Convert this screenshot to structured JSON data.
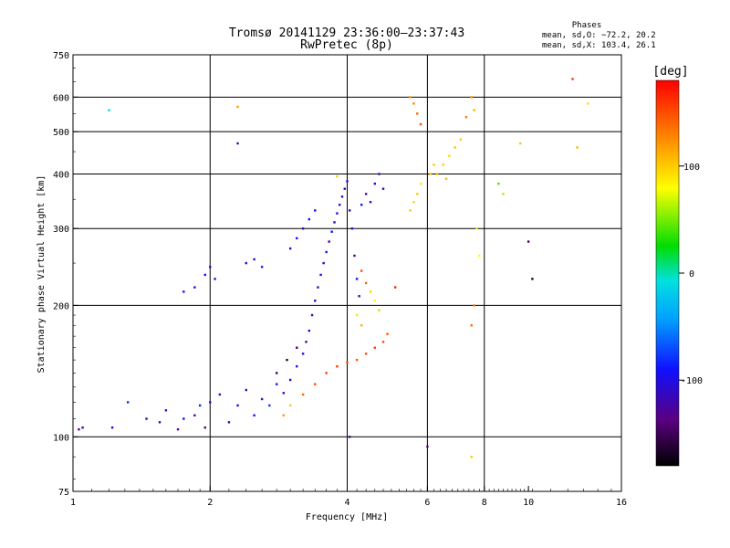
{
  "chart_data": {
    "type": "scatter",
    "title": "Tromsø 20141129 23:36:00–23:37:43",
    "subtitle": "RwPretec (8p)",
    "xlabel": "Frequency [MHz]",
    "ylabel": "Stationary phase Virtual Height [km]",
    "x_scale": "log",
    "y_scale": "log",
    "xlim": [
      1,
      16
    ],
    "ylim": [
      75,
      750
    ],
    "x_ticks": [
      1,
      2,
      4,
      6,
      8,
      10,
      16
    ],
    "y_ticks": [
      75,
      100,
      200,
      300,
      400,
      500,
      600,
      750
    ],
    "x_grid": [
      2,
      4,
      6,
      8
    ],
    "y_grid": [
      100,
      200,
      300,
      400,
      500,
      600
    ],
    "grid": true,
    "stats": {
      "heading": "Phases",
      "line_o": "mean, sd,O: −72.2, 20.2",
      "line_x": "mean, sd,X: 103.4, 26.1"
    },
    "colorbar": {
      "label": "[deg]",
      "min": -180,
      "max": 180,
      "ticks": [
        100,
        0,
        -100
      ]
    },
    "series": [
      {
        "name": "O",
        "points": [
          [
            1.03,
            104,
            -130
          ],
          [
            1.05,
            105,
            -110
          ],
          [
            1.22,
            105,
            -90
          ],
          [
            1.32,
            120,
            -80
          ],
          [
            1.45,
            110,
            -120
          ],
          [
            1.55,
            108,
            -100
          ],
          [
            1.6,
            115,
            -110
          ],
          [
            1.7,
            104,
            -125
          ],
          [
            1.75,
            110,
            -95
          ],
          [
            1.85,
            112,
            -130
          ],
          [
            1.9,
            118,
            -85
          ],
          [
            1.95,
            105,
            -140
          ],
          [
            2.0,
            120,
            -100
          ],
          [
            2.1,
            125,
            -115
          ],
          [
            2.2,
            108,
            -105
          ],
          [
            2.3,
            118,
            -95
          ],
          [
            2.4,
            128,
            -120
          ],
          [
            2.5,
            112,
            -90
          ],
          [
            2.6,
            122,
            -110
          ],
          [
            2.7,
            118,
            -80
          ],
          [
            2.8,
            132,
            -100
          ],
          [
            2.9,
            126,
            -125
          ],
          [
            3.0,
            135,
            -95
          ],
          [
            3.1,
            145,
            -110
          ],
          [
            3.2,
            155,
            -100
          ],
          [
            3.25,
            165,
            -130
          ],
          [
            3.3,
            175,
            -105
          ],
          [
            3.35,
            190,
            -115
          ],
          [
            3.4,
            205,
            -100
          ],
          [
            3.45,
            220,
            -120
          ],
          [
            3.5,
            235,
            -95
          ],
          [
            3.55,
            250,
            -110
          ],
          [
            3.6,
            265,
            -100
          ],
          [
            3.65,
            280,
            -125
          ],
          [
            3.7,
            295,
            -90
          ],
          [
            3.75,
            310,
            -115
          ],
          [
            3.8,
            325,
            -100
          ],
          [
            3.85,
            340,
            -110
          ],
          [
            3.9,
            355,
            -95
          ],
          [
            3.95,
            370,
            -120
          ],
          [
            4.0,
            385,
            -100
          ],
          [
            4.05,
            330,
            -115
          ],
          [
            4.1,
            300,
            -105
          ],
          [
            4.15,
            260,
            -130
          ],
          [
            4.2,
            230,
            -100
          ],
          [
            4.25,
            210,
            -110
          ],
          [
            4.3,
            340,
            -90
          ],
          [
            4.4,
            360,
            -120
          ],
          [
            4.5,
            345,
            -105
          ],
          [
            4.6,
            380,
            -100
          ],
          [
            4.7,
            400,
            -125
          ],
          [
            4.8,
            370,
            -110
          ],
          [
            1.75,
            215,
            -90
          ],
          [
            1.85,
            220,
            -105
          ],
          [
            1.95,
            235,
            -100
          ],
          [
            2.0,
            245,
            -115
          ],
          [
            2.05,
            230,
            -95
          ],
          [
            2.4,
            250,
            -100
          ],
          [
            2.5,
            255,
            -110
          ],
          [
            2.6,
            245,
            -85
          ],
          [
            3.0,
            270,
            -100
          ],
          [
            3.1,
            285,
            -95
          ],
          [
            3.2,
            300,
            -110
          ],
          [
            3.3,
            315,
            -100
          ],
          [
            3.4,
            330,
            -90
          ],
          [
            2.8,
            140,
            -150
          ],
          [
            2.95,
            150,
            -160
          ],
          [
            3.1,
            160,
            -145
          ]
        ]
      },
      {
        "name": "X",
        "points": [
          [
            2.9,
            112,
            120
          ],
          [
            3.0,
            118,
            100
          ],
          [
            3.2,
            125,
            140
          ],
          [
            3.4,
            132,
            150
          ],
          [
            3.6,
            140,
            155
          ],
          [
            3.8,
            145,
            160
          ],
          [
            4.0,
            148,
            150
          ],
          [
            4.2,
            150,
            145
          ],
          [
            4.4,
            155,
            150
          ],
          [
            4.6,
            160,
            155
          ],
          [
            4.8,
            165,
            150
          ],
          [
            4.9,
            172,
            145
          ],
          [
            4.3,
            240,
            150
          ],
          [
            4.4,
            225,
            140
          ],
          [
            4.5,
            215,
            100
          ],
          [
            4.6,
            205,
            80
          ],
          [
            4.7,
            195,
            60
          ],
          [
            4.2,
            190,
            70
          ],
          [
            4.3,
            180,
            110
          ],
          [
            5.5,
            330,
            100
          ],
          [
            5.6,
            345,
            95
          ],
          [
            5.7,
            360,
            100
          ],
          [
            5.8,
            380,
            90
          ],
          [
            6.3,
            400,
            110
          ],
          [
            6.5,
            420,
            100
          ],
          [
            6.7,
            440,
            95
          ],
          [
            6.9,
            460,
            105
          ],
          [
            7.1,
            480,
            100
          ],
          [
            5.5,
            600,
            120
          ],
          [
            5.6,
            580,
            130
          ],
          [
            5.7,
            550,
            140
          ],
          [
            5.8,
            520,
            150
          ],
          [
            7.3,
            540,
            130
          ],
          [
            7.5,
            600,
            120
          ],
          [
            7.6,
            560,
            110
          ],
          [
            7.7,
            300,
            90
          ],
          [
            7.8,
            260,
            80
          ],
          [
            7.6,
            200,
            130
          ],
          [
            7.5,
            180,
            140
          ],
          [
            6.1,
            400,
            105
          ],
          [
            6.2,
            420,
            100
          ],
          [
            6.6,
            390,
            110
          ],
          [
            10.0,
            280,
            -150
          ],
          [
            10.2,
            230,
            -160
          ],
          [
            12.5,
            660,
            160
          ],
          [
            12.8,
            460,
            110
          ],
          [
            13.5,
            580,
            90
          ],
          [
            9.6,
            470,
            100
          ],
          [
            8.6,
            380,
            40
          ],
          [
            8.8,
            360,
            60
          ],
          [
            5.1,
            220,
            170
          ],
          [
            3.8,
            395,
            100
          ],
          [
            4.05,
            100,
            -140
          ],
          [
            6.0,
            95,
            -130
          ],
          [
            7.5,
            90,
            100
          ],
          [
            2.3,
            570,
            120
          ],
          [
            2.3,
            470,
            -120
          ],
          [
            1.2,
            560,
            -10
          ]
        ]
      }
    ]
  }
}
